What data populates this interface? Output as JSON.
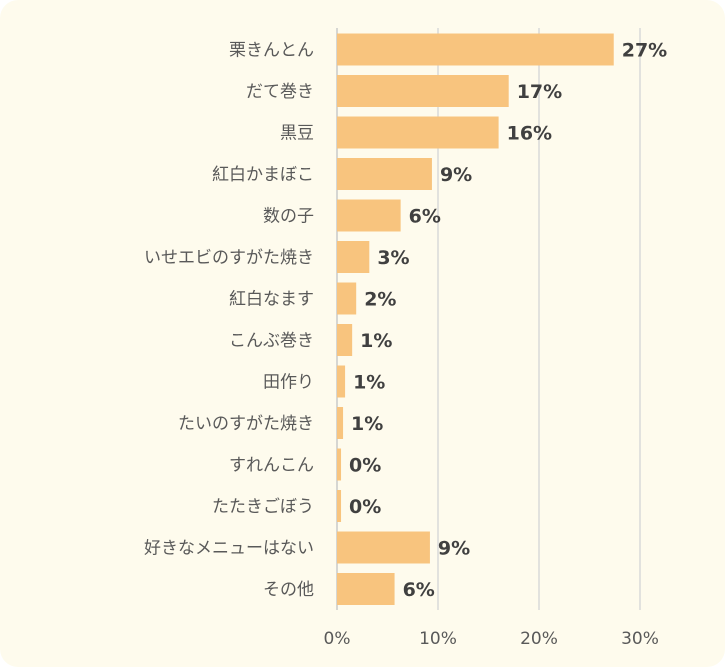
{
  "chart_data": {
    "type": "bar",
    "orientation": "horizontal",
    "title": "",
    "xlabel": "",
    "ylabel": "",
    "xlim": [
      0,
      30
    ],
    "ticks": [
      {
        "value": 0,
        "label": "0%"
      },
      {
        "value": 10,
        "label": "10%"
      },
      {
        "value": 20,
        "label": "20%"
      },
      {
        "value": 30,
        "label": "30%"
      }
    ],
    "grid": true,
    "legend": "none",
    "bar_color": "#f8c47e",
    "categories": [
      "栗きんとん",
      "だて巻き",
      "黒豆",
      "紅白かまぼこ",
      "数の子",
      "いせエビのすがた焼き",
      "紅白なます",
      "こんぶ巻き",
      "田作り",
      "たいのすがた焼き",
      "すれんこん",
      "たたきごぼう",
      "好きなメニューはない",
      "その他"
    ],
    "values": [
      27.4,
      17.0,
      16.0,
      9.4,
      6.3,
      3.2,
      1.9,
      1.5,
      0.8,
      0.6,
      0.4,
      0.4,
      9.2,
      5.7
    ],
    "value_labels": [
      "27%",
      "17%",
      "16%",
      "9%",
      "6%",
      "3%",
      "2%",
      "1%",
      "1%",
      "1%",
      "0%",
      "0%",
      "9%",
      "6%"
    ]
  }
}
